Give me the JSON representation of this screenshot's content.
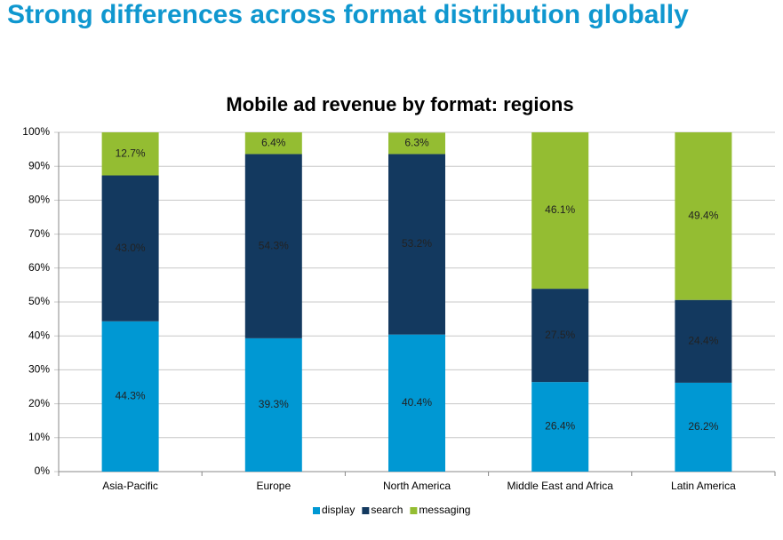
{
  "page_title": "Strong differences across format distribution globally",
  "chart_data": {
    "type": "stacked_bar",
    "title": "Mobile ad revenue by format: regions",
    "categories": [
      "Asia-Pacific",
      "Europe",
      "North America",
      "Middle East and Africa",
      "Latin America"
    ],
    "series": [
      {
        "name": "display",
        "color": "#0098d3",
        "values": [
          44.3,
          39.3,
          40.4,
          26.4,
          26.2
        ],
        "value_labels": [
          "44.3%",
          "39.3%",
          "40.4%",
          "26.4%",
          "26.2%"
        ]
      },
      {
        "name": "search",
        "color": "#13395f",
        "values": [
          43.0,
          54.3,
          53.2,
          27.5,
          24.4
        ],
        "value_labels": [
          "43.0%",
          "54.3%",
          "53.2%",
          "27.5%",
          "24.4%"
        ]
      },
      {
        "name": "messaging",
        "color": "#94bd32",
        "values": [
          12.7,
          6.4,
          6.3,
          46.1,
          49.4
        ],
        "value_labels": [
          "12.7%",
          "6.4%",
          "6.3%",
          "46.1%",
          "49.4%"
        ]
      }
    ],
    "ylim": [
      0,
      100
    ],
    "yticks": [
      {
        "value": 0,
        "label": "0%"
      },
      {
        "value": 10,
        "label": "10%"
      },
      {
        "value": 20,
        "label": "20%"
      },
      {
        "value": 30,
        "label": "30%"
      },
      {
        "value": 40,
        "label": "40%"
      },
      {
        "value": 50,
        "label": "50%"
      },
      {
        "value": 60,
        "label": "60%"
      },
      {
        "value": 70,
        "label": "70%"
      },
      {
        "value": 80,
        "label": "80%"
      },
      {
        "value": 90,
        "label": "90%"
      },
      {
        "value": 100,
        "label": "100%"
      }
    ],
    "grid": true,
    "legend": "bottom"
  }
}
